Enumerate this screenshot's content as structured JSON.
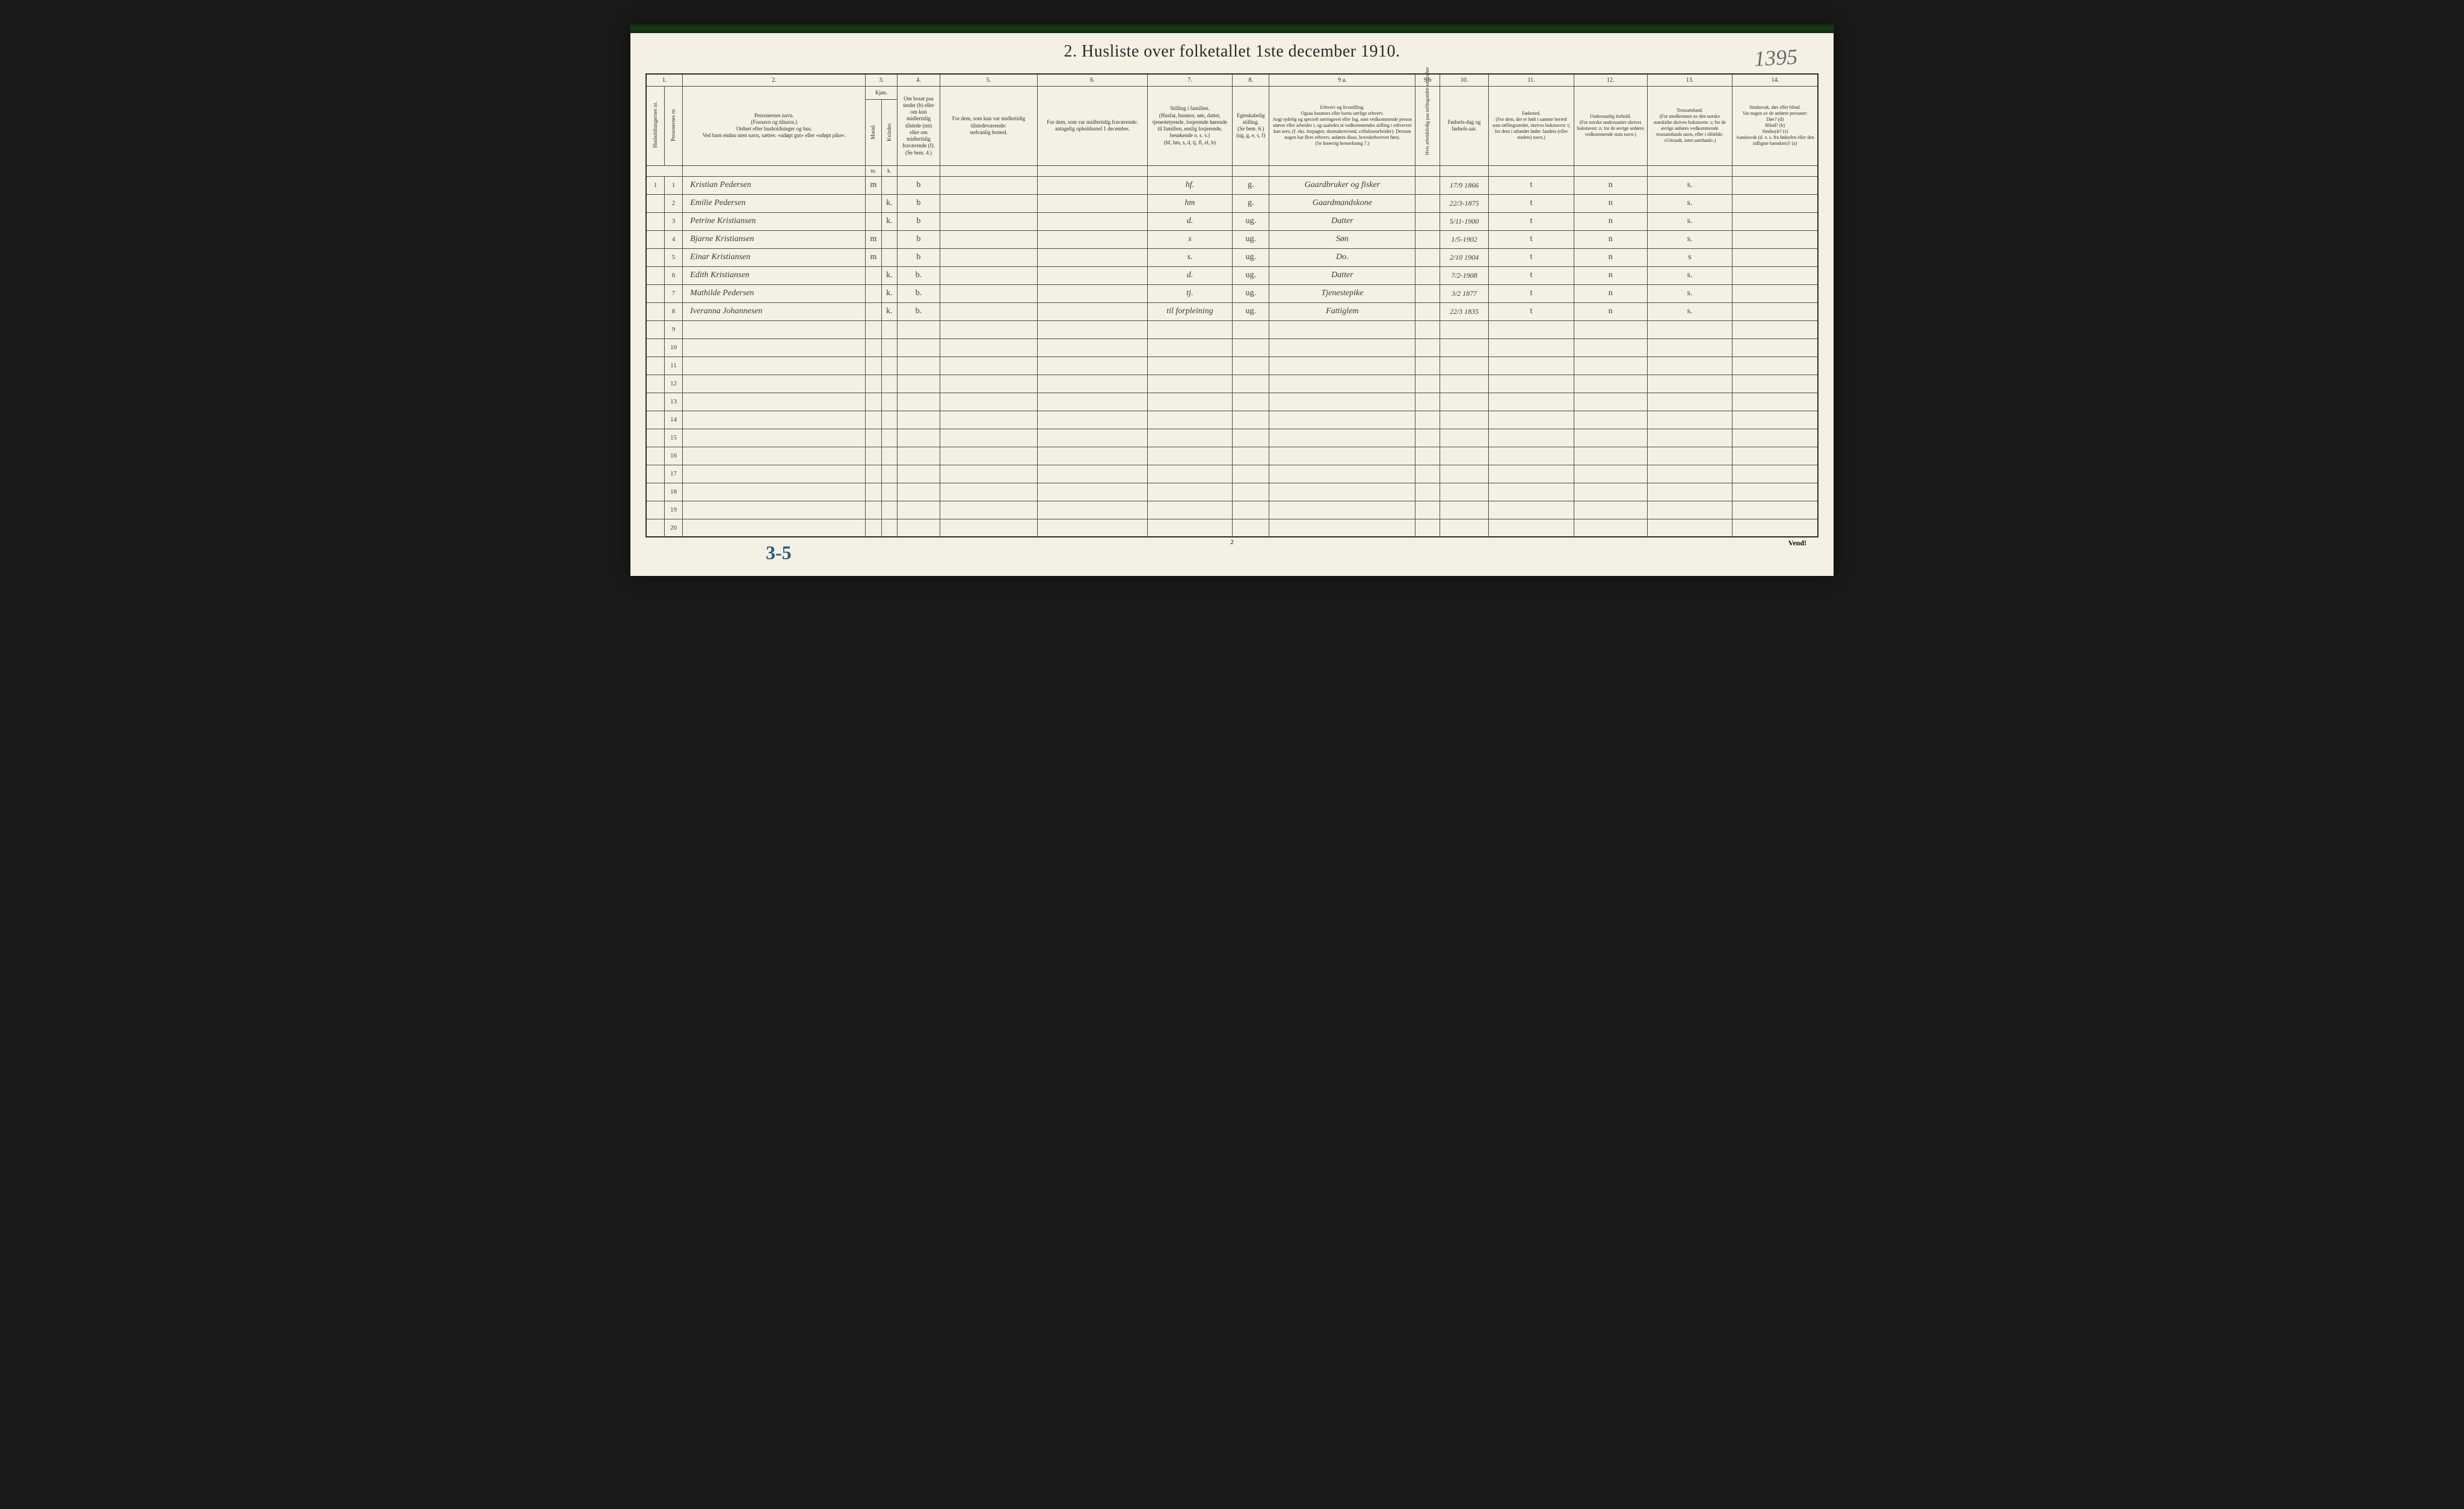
{
  "corner_annotation": "1395",
  "title": "2.  Husliste over folketallet 1ste december 1910.",
  "column_numbers": [
    "1.",
    "2.",
    "3.",
    "4.",
    "5.",
    "6.",
    "7.",
    "8.",
    "9 a.",
    "9 b",
    "10.",
    "11.",
    "12.",
    "13.",
    "14."
  ],
  "headers": {
    "col1a": "Husholdningernes nr.",
    "col1b": "Personernes nr.",
    "col2": "Personernes navn.\n(Fornavn og tilnavn.)\nOrdnet efter husholdninger og hus.\nVed barn endnu uten navn, sættes: «udøpt gut» eller «udøpt pike».",
    "col3": "Kjøn.",
    "col3a": "Mænd.",
    "col3b": "Kvinder.",
    "col4": "Om bosat paa stedet (b) eller om kun midlertidig tilstede (mt) eller om midlertidig fraværende (f).\n(Se bem. 4.)",
    "col5": "For dem, som kun var midlertidig tilstedeværende:\nsedvanlig bosted.",
    "col6": "For dem, som var midlertidig fraværende:\nantagelig opholdssted 1 december.",
    "col7": "Stilling i familien.\n(Husfar, husmor, søn, datter, tjenestetyende, losjerende hørende til familien, enslig losjerende, besøkende o. s. v.)\n(hf, hm, s, d, tj, fl, el, b)",
    "col8": "Egteskabelig stilling.\n(Se bem. 6.)\n(ug, g, e, s, f)",
    "col9a": "Erhverv og livsstilling.\nOgsaa husmors eller barns særlige erhverv.\nAngi tydelig og specielt næringsvei eller fag, som vedkommende person utøver eller arbeider i, og saaledes at vedkommendes stilling i erhvervet kan sees, (f. eks. forpagter, skomakersvend, cellulosearbeider). Dersom nogen har flere erhverv, anføres disse, hovederhvervet først.\n(Se forøvrig bemerkning 7.)",
    "col9b": "Hvis arbeidsledig paa tællingstiden sættes her",
    "col10": "Fødsels-dag og fødsels-aar.",
    "col11": "Fødested.\n(For dem, der er født i samme herred som tællingsstedet, skrives bokstaven: t; for dem i utlandet fødte: landets (eller stedets) navn.)",
    "col12": "Undersaatlig forhold.\n(For norske undersaatter skrives bokstaven: n; for de øvrige anføres vedkommende stats navn.)",
    "col13": "Trossamfund.\n(For medlemmer av den norske statskirke skrives bokstaven: s; for de øvrige anføres vedkommende trossamfunds navn, eller i tilfælde: «Uttraadt, intet samfund».)",
    "col14": "Sindssvak, døv eller blind.\nVar nogen av de anførte personer:\nDøv? (d)\nBlind? (b)\nSindssyk? (s)\nAandssvak (d. v. s. fra fødselen eller den tidligste barndom)? (a)"
  },
  "sub_mk": {
    "m": "m.",
    "k": "k."
  },
  "rows": [
    {
      "hh": "1",
      "pn": "1",
      "name": "Kristian Pedersen",
      "sex_m": "m",
      "sex_k": "",
      "presence": "b",
      "col5": "",
      "col6": "",
      "col7": "hf.",
      "col8": "g.",
      "col9a": "Gaardbruker og fisker",
      "col9b": "",
      "col10": "17/9 1866",
      "col11": "t",
      "col12": "n",
      "col13": "s.",
      "col14": ""
    },
    {
      "hh": "",
      "pn": "2",
      "name": "Emilie Pedersen",
      "sex_m": "",
      "sex_k": "k.",
      "presence": "b",
      "col5": "",
      "col6": "",
      "col7": "hm",
      "col8": "g.",
      "col9a": "Gaardmandskone",
      "col9b": "",
      "col10": "22/3-1875",
      "col11": "t",
      "col12": "n",
      "col13": "s.",
      "col14": ""
    },
    {
      "hh": "",
      "pn": "3",
      "name": "Petrine Kristiansen",
      "sex_m": "",
      "sex_k": "k.",
      "presence": "b",
      "col5": "",
      "col6": "",
      "col7": "d.",
      "col8": "ug.",
      "col9a": "Datter",
      "col9b": "",
      "col10": "5/11-1900",
      "col11": "t",
      "col12": "n",
      "col13": "s.",
      "col14": ""
    },
    {
      "hh": "",
      "pn": "4",
      "name": "Bjarne Kristiansen",
      "sex_m": "m",
      "sex_k": "",
      "presence": "b",
      "col5": "",
      "col6": "",
      "col7": "s",
      "col8": "ug.",
      "col9a": "Søn",
      "col9b": "",
      "col10": "1/5-1902",
      "col11": "t",
      "col12": "n",
      "col13": "s.",
      "col14": ""
    },
    {
      "hh": "",
      "pn": "5",
      "name": "Einar Kristiansen",
      "sex_m": "m",
      "sex_k": "",
      "presence": "b",
      "col5": "",
      "col6": "",
      "col7": "s.",
      "col8": "ug.",
      "col9a": "Do.",
      "col9b": "",
      "col10": "2/10 1904",
      "col11": "t",
      "col12": "n",
      "col13": "s",
      "col14": ""
    },
    {
      "hh": "",
      "pn": "6",
      "name": "Edith Kristiansen",
      "sex_m": "",
      "sex_k": "k.",
      "presence": "b.",
      "col5": "",
      "col6": "",
      "col7": "d.",
      "col8": "ug.",
      "col9a": "Datter",
      "col9b": "",
      "col10": "7/2-1908",
      "col11": "t",
      "col12": "n",
      "col13": "s.",
      "col14": ""
    },
    {
      "hh": "",
      "pn": "7",
      "name": "Mathilde Pedersen",
      "sex_m": "",
      "sex_k": "k.",
      "presence": "b.",
      "col5": "",
      "col6": "",
      "col7": "tj.",
      "col8": "ug.",
      "col9a": "Tjenestepike",
      "col9b": "",
      "col10": "3/2 1877",
      "col11": "t",
      "col12": "n",
      "col13": "s.",
      "col14": ""
    },
    {
      "hh": "",
      "pn": "8",
      "name": "Iveranna Johannesen",
      "sex_m": "",
      "sex_k": "k.",
      "presence": "b.",
      "col5": "",
      "col6": "",
      "col7": "til forpleining",
      "col8": "ug.",
      "col9a": "Fattiglem",
      "col9b": "",
      "col10": "22/3 1835",
      "col11": "t",
      "col12": "n",
      "col13": "s.",
      "col14": ""
    }
  ],
  "empty_row_nums": [
    "9",
    "10",
    "11",
    "12",
    "13",
    "14",
    "15",
    "16",
    "17",
    "18",
    "19",
    "20"
  ],
  "bottom_annotation": "3-5",
  "page_number": "2",
  "vend": "Vend!",
  "colors": {
    "page_bg": "#f4f0e4",
    "border": "#2a2a2a",
    "text": "#2a2a2a",
    "handwriting": "#3a3a3a",
    "blue_pencil": "#2a5a7a",
    "top_stripe": "#0a2a0a"
  }
}
